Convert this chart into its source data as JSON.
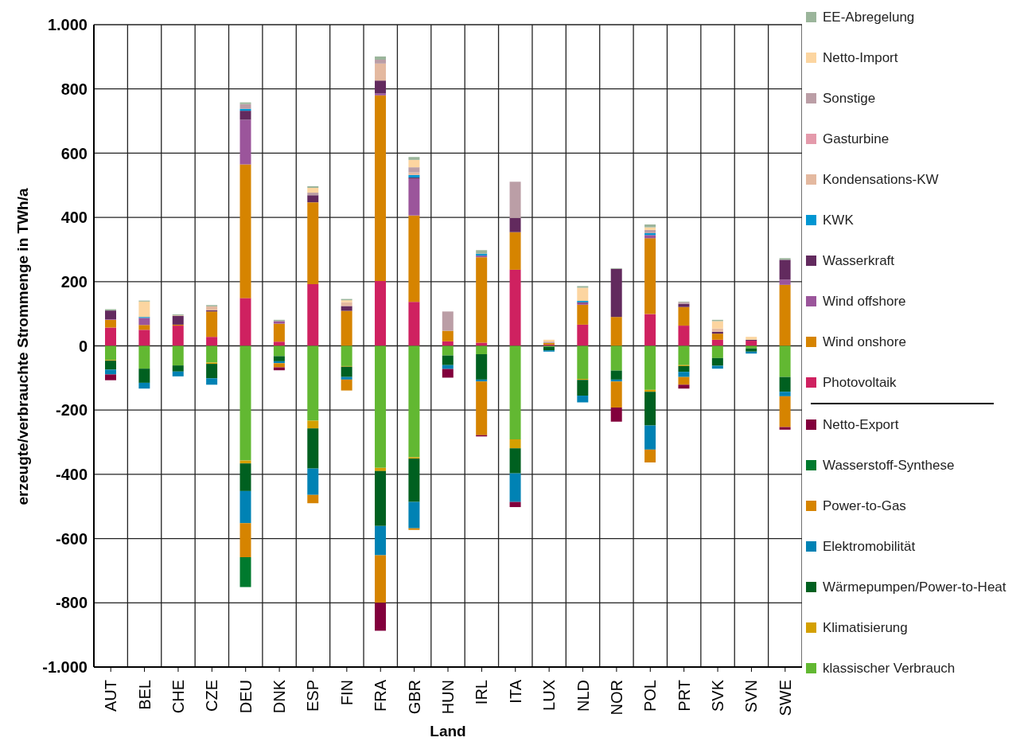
{
  "chart_data": {
    "type": "bar",
    "stacked": true,
    "xlabel": "Land",
    "ylabel": "erzeugte/verbrauchte Strommenge in TWh/a",
    "categories": [
      "AUT",
      "BEL",
      "CHE",
      "CZE",
      "DEU",
      "DNK",
      "ESP",
      "FIN",
      "FRA",
      "GBR",
      "HUN",
      "IRL",
      "ITA",
      "LUX",
      "NLD",
      "NOR",
      "POL",
      "PRT",
      "SVK",
      "SVN",
      "SWE"
    ],
    "ylim": [
      -1000,
      1000
    ],
    "yticks": [
      {
        "value": -1000,
        "label": "-1.000"
      },
      -800,
      -600,
      -400,
      -200,
      0,
      200,
      400,
      600,
      800,
      {
        "value": 1000,
        "label": "1.000"
      }
    ],
    "grid": true,
    "legend": "right",
    "series": [
      {
        "name": "Photovoltaik",
        "color": "#cf2160",
        "values": [
          57,
          50,
          63,
          28,
          149,
          13,
          192,
          null,
          202,
          137,
          14,
          10,
          237,
          4,
          66,
          null,
          99,
          63,
          19,
          16,
          null
        ]
      },
      {
        "name": "Wind onshore",
        "color": "#d68400",
        "values": [
          24,
          15,
          3,
          79,
          416,
          56,
          255,
          109,
          578,
          269,
          33,
          266,
          117,
          5,
          62,
          90,
          236,
          58,
          19,
          null,
          190
        ]
      },
      {
        "name": "Wind offshore",
        "color": "#9b559b",
        "values": [
          2,
          22,
          null,
          null,
          139,
          8,
          null,
          null,
          6,
          114,
          null,
          5,
          null,
          null,
          5,
          null,
          10,
          null,
          null,
          null,
          16
        ]
      },
      {
        "name": "Wasserkraft",
        "color": "#622a5e",
        "values": [
          27,
          null,
          27,
          4,
          28,
          null,
          22,
          15,
          40,
          4,
          null,
          null,
          44,
          null,
          3,
          150,
          null,
          10,
          6,
          3,
          62
        ]
      },
      {
        "name": "KWK",
        "color": "#0096d2",
        "values": [
          null,
          3,
          null,
          null,
          6,
          null,
          null,
          null,
          null,
          8,
          null,
          6,
          null,
          null,
          4,
          null,
          6,
          null,
          null,
          null,
          null
        ]
      },
      {
        "name": "Kondensations-KW",
        "color": "#e4b9a0",
        "values": [
          null,
          null,
          2,
          12,
          null,
          null,
          null,
          12,
          53,
          8,
          null,
          null,
          null,
          null,
          null,
          null,
          null,
          null,
          10,
          null,
          null
        ]
      },
      {
        "name": "Gasturbine",
        "color": "#e49aab",
        "values": [
          null,
          null,
          null,
          null,
          null,
          null,
          null,
          null,
          null,
          null,
          null,
          null,
          null,
          null,
          null,
          null,
          null,
          null,
          null,
          null,
          null
        ]
      },
      {
        "name": "Sonstige",
        "color": "#bb9ea6",
        "values": [
          null,
          null,
          null,
          null,
          15,
          null,
          8,
          null,
          12,
          16,
          60,
          null,
          113,
          4,
          null,
          null,
          10,
          5,
          null,
          null,
          null
        ]
      },
      {
        "name": "Netto-Import",
        "color": "#fcd5a0",
        "values": [
          null,
          48,
          null,
          null,
          null,
          null,
          15,
          6,
          null,
          23,
          null,
          null,
          null,
          6,
          41,
          null,
          8,
          null,
          23,
          9,
          null
        ]
      },
      {
        "name": "EE-Abregelung",
        "color": "#9bb59b",
        "values": [
          4,
          3,
          3,
          4,
          5,
          4,
          5,
          4,
          10,
          9,
          null,
          11,
          null,
          null,
          5,
          2,
          9,
          2,
          4,
          null,
          5
        ]
      },
      {
        "name": "klassischer Verbrauch",
        "color": "#62b832",
        "values": [
          -44,
          -71,
          -61,
          -52,
          -357,
          -32,
          -233,
          -63,
          -380,
          -347,
          -30,
          -26,
          -291,
          -3,
          -103,
          -77,
          -137,
          -60,
          -38,
          -8,
          -97
        ]
      },
      {
        "name": "Klimatisierung",
        "color": "#d4a000",
        "values": [
          -2,
          null,
          null,
          -4,
          -9,
          null,
          -24,
          -2,
          -10,
          -4,
          null,
          null,
          -28,
          null,
          -3,
          null,
          -6,
          -3,
          null,
          null,
          null
        ]
      },
      {
        "name": "Wärmepumpen/Power-to-Heat",
        "color": "#006020",
        "values": [
          -28,
          -44,
          -19,
          -45,
          -86,
          -16,
          -125,
          -32,
          -171,
          -135,
          -30,
          -79,
          -78,
          -11,
          -49,
          -28,
          -105,
          -18,
          -24,
          -10,
          -46
        ]
      },
      {
        "name": "Elektromobilität",
        "color": "#0082b4",
        "values": [
          -15,
          -18,
          -15,
          -20,
          -100,
          -6,
          -82,
          -8,
          -91,
          -82,
          -12,
          -6,
          -89,
          -4,
          -21,
          -6,
          -75,
          -16,
          -9,
          -6,
          -14
        ]
      },
      {
        "name": "Power-to-Gas",
        "color": "#d68400",
        "values": [
          null,
          null,
          null,
          null,
          -106,
          -13,
          -26,
          -34,
          -148,
          -5,
          null,
          -167,
          null,
          null,
          null,
          -81,
          -40,
          -24,
          null,
          null,
          -96
        ]
      },
      {
        "name": "Wasserstoff-Synthese",
        "color": "#007a2e",
        "values": [
          null,
          null,
          null,
          null,
          -93,
          null,
          null,
          null,
          null,
          null,
          null,
          null,
          null,
          null,
          null,
          null,
          null,
          null,
          null,
          null,
          null
        ]
      },
      {
        "name": "Netto-Export",
        "color": "#82003c",
        "values": [
          -18,
          null,
          null,
          null,
          null,
          -9,
          null,
          null,
          -87,
          null,
          -27,
          -4,
          -16,
          null,
          null,
          -44,
          null,
          -12,
          null,
          null,
          -8
        ]
      }
    ]
  }
}
